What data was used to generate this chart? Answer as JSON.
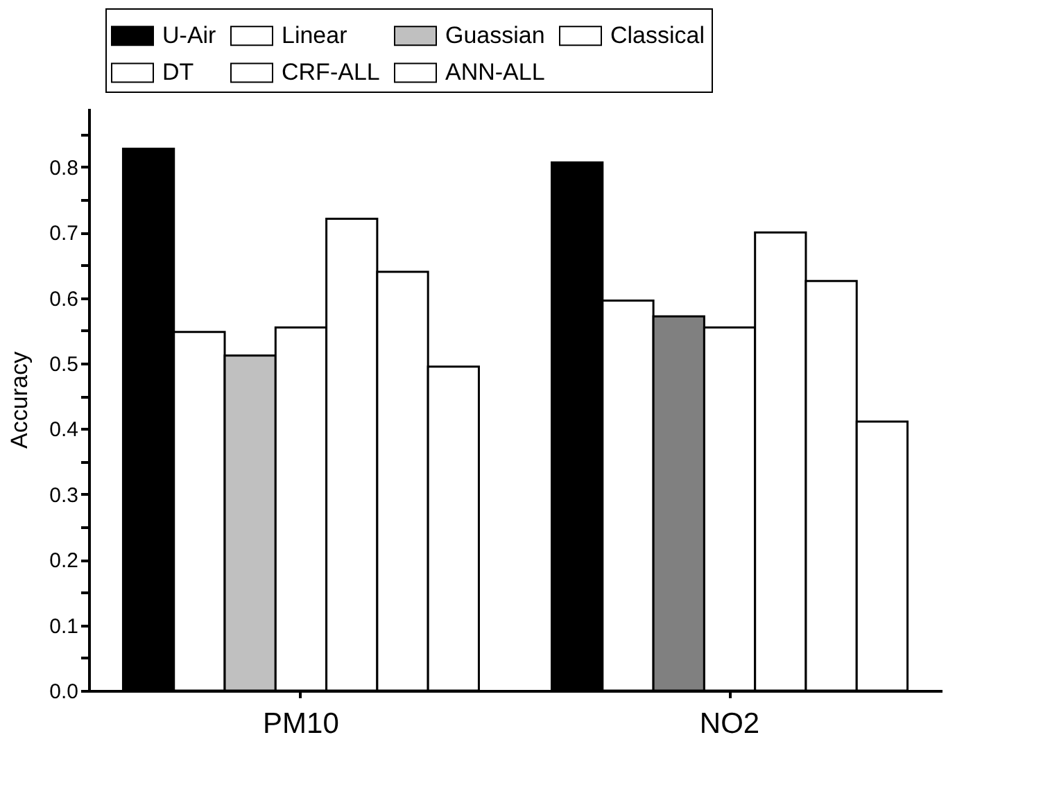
{
  "chart_data": {
    "type": "bar",
    "ylabel": "Accuracy",
    "categories": [
      "PM10",
      "NO2"
    ],
    "series": [
      {
        "name": "U-Air",
        "color": "#000000",
        "values": [
          0.828,
          0.807
        ]
      },
      {
        "name": "Linear",
        "color": "#ffffff",
        "values": [
          0.548,
          0.596
        ]
      },
      {
        "name": "Guassian",
        "color": "#c0c0c0",
        "colors": [
          "#c0c0c0",
          "#808080"
        ],
        "values": [
          0.512,
          0.572
        ]
      },
      {
        "name": "Classical",
        "color": "#ffffff",
        "values": [
          0.555,
          0.555
        ]
      },
      {
        "name": "DT",
        "color": "#ffffff",
        "values": [
          0.721,
          0.7
        ]
      },
      {
        "name": "CRF-ALL",
        "color": "#ffffff",
        "values": [
          0.64,
          0.626
        ]
      },
      {
        "name": "ANN-ALL",
        "color": "#ffffff",
        "values": [
          0.495,
          0.411
        ]
      }
    ],
    "ylim": [
      0,
      0.89
    ],
    "yticks": [
      {
        "value": 0,
        "label": "0.0"
      },
      {
        "value": 0.05,
        "label": null
      },
      0.1,
      {
        "value": 0.15,
        "label": null
      },
      0.2,
      {
        "value": 0.25,
        "label": null
      },
      0.3,
      {
        "value": 0.35,
        "label": null
      },
      0.4,
      {
        "value": 0.45,
        "label": null
      },
      0.5,
      {
        "value": 0.55,
        "label": null
      },
      0.6,
      {
        "value": 0.65,
        "label": null
      },
      0.7,
      {
        "value": 0.75,
        "label": null
      },
      0.8,
      {
        "value": 0.85,
        "label": null
      }
    ],
    "grid": false,
    "legend": "top"
  }
}
